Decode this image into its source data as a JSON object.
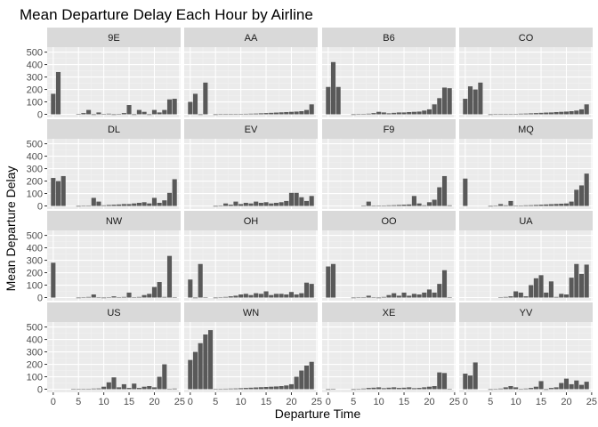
{
  "chart_data": {
    "type": "bar",
    "title": "Mean Departure Delay Each Hour by Airline",
    "xlabel": "Departure Time",
    "ylabel": "Mean Departure Delay",
    "xlim": [
      -1.2,
      25.2
    ],
    "ylim": [
      -25,
      540
    ],
    "x_ticks": [
      0,
      5,
      10,
      15,
      20,
      25
    ],
    "y_ticks": [
      0,
      100,
      200,
      300,
      400,
      500
    ],
    "grid": true,
    "colors": {
      "bar": "#595959",
      "panel": "#ebebeb",
      "grid_major": "#ffffff",
      "grid_minor": "#f2f2f2",
      "strip": "#d9d9d9",
      "tick": "#333333"
    },
    "panels": [
      {
        "name": "9E",
        "x": [
          0,
          1,
          5,
          6,
          7,
          8,
          9,
          10,
          11,
          12,
          13,
          14,
          15,
          16,
          17,
          18,
          19,
          20,
          21,
          22,
          23,
          24
        ],
        "values": [
          165,
          340,
          2,
          10,
          35,
          -5,
          15,
          -3,
          5,
          -5,
          -3,
          10,
          75,
          -5,
          35,
          20,
          -5,
          35,
          15,
          35,
          120,
          125
        ]
      },
      {
        "name": "AA",
        "x": [
          0,
          1,
          2,
          3,
          5,
          6,
          7,
          8,
          9,
          10,
          11,
          12,
          13,
          14,
          15,
          16,
          17,
          18,
          19,
          20,
          21,
          22,
          23,
          24
        ],
        "values": [
          100,
          165,
          -5,
          255,
          -5,
          -3,
          -2,
          0,
          2,
          3,
          4,
          5,
          6,
          8,
          10,
          12,
          14,
          16,
          18,
          20,
          22,
          25,
          35,
          80
        ]
      },
      {
        "name": "B6",
        "x": [
          0,
          1,
          2,
          5,
          6,
          7,
          8,
          9,
          10,
          11,
          12,
          13,
          14,
          15,
          16,
          17,
          18,
          19,
          20,
          21,
          22,
          23,
          24
        ],
        "values": [
          220,
          420,
          220,
          -5,
          -3,
          2,
          5,
          10,
          20,
          15,
          8,
          12,
          15,
          15,
          18,
          20,
          22,
          30,
          40,
          80,
          130,
          215,
          210
        ]
      },
      {
        "name": "CO",
        "x": [
          0,
          1,
          2,
          3,
          5,
          6,
          7,
          8,
          9,
          10,
          11,
          12,
          13,
          14,
          15,
          16,
          17,
          18,
          19,
          20,
          21,
          22,
          23,
          24
        ],
        "values": [
          125,
          225,
          200,
          255,
          -5,
          -3,
          -2,
          0,
          2,
          3,
          5,
          6,
          8,
          10,
          12,
          14,
          15,
          18,
          20,
          22,
          25,
          30,
          40,
          80
        ]
      },
      {
        "name": "DL",
        "x": [
          0,
          1,
          2,
          5,
          6,
          7,
          8,
          9,
          10,
          11,
          12,
          13,
          14,
          15,
          16,
          17,
          18,
          19,
          20,
          21,
          22,
          23,
          24
        ],
        "values": [
          225,
          200,
          240,
          -5,
          -3,
          2,
          65,
          35,
          5,
          8,
          10,
          12,
          15,
          15,
          20,
          25,
          30,
          20,
          65,
          25,
          45,
          105,
          215
        ]
      },
      {
        "name": "EV",
        "x": [
          5,
          6,
          7,
          8,
          9,
          10,
          11,
          12,
          13,
          14,
          15,
          16,
          17,
          18,
          19,
          20,
          21,
          22,
          23,
          24
        ],
        "values": [
          -5,
          3,
          20,
          10,
          35,
          15,
          25,
          20,
          35,
          25,
          30,
          20,
          25,
          30,
          40,
          105,
          105,
          70,
          40,
          80
        ]
      },
      {
        "name": "F9",
        "x": [
          7,
          8,
          9,
          10,
          11,
          12,
          13,
          14,
          15,
          16,
          17,
          18,
          19,
          20,
          21,
          22,
          23,
          24
        ],
        "values": [
          3,
          35,
          -3,
          2,
          3,
          5,
          6,
          8,
          10,
          12,
          80,
          20,
          5,
          30,
          50,
          150,
          240,
          5
        ]
      },
      {
        "name": "MQ",
        "x": [
          0,
          5,
          6,
          7,
          8,
          9,
          10,
          11,
          12,
          13,
          14,
          15,
          16,
          17,
          18,
          19,
          20,
          21,
          22,
          23,
          24
        ],
        "values": [
          220,
          -5,
          2,
          15,
          5,
          40,
          2,
          3,
          5,
          6,
          8,
          10,
          12,
          14,
          16,
          18,
          20,
          35,
          130,
          165,
          260
        ]
      },
      {
        "name": "NW",
        "x": [
          0,
          5,
          6,
          7,
          8,
          9,
          10,
          11,
          12,
          13,
          14,
          15,
          16,
          17,
          18,
          19,
          20,
          21,
          22,
          23,
          24
        ],
        "values": [
          280,
          -5,
          -3,
          5,
          25,
          -3,
          -5,
          2,
          10,
          -3,
          5,
          40,
          3,
          5,
          20,
          30,
          85,
          125,
          5,
          335,
          3
        ]
      },
      {
        "name": "OH",
        "x": [
          0,
          1,
          2,
          3,
          5,
          6,
          7,
          8,
          9,
          10,
          11,
          12,
          13,
          14,
          15,
          16,
          17,
          18,
          19,
          20,
          21,
          22,
          23,
          24
        ],
        "values": [
          145,
          -5,
          270,
          3,
          -5,
          -3,
          5,
          10,
          15,
          25,
          30,
          20,
          35,
          30,
          50,
          20,
          30,
          30,
          25,
          45,
          25,
          35,
          120,
          110
        ]
      },
      {
        "name": "OO",
        "x": [
          0,
          1,
          5,
          6,
          7,
          8,
          9,
          10,
          11,
          12,
          13,
          14,
          15,
          16,
          17,
          18,
          19,
          20,
          21,
          22,
          23,
          24
        ],
        "values": [
          250,
          270,
          -5,
          2,
          -3,
          15,
          -2,
          -5,
          5,
          20,
          35,
          15,
          40,
          15,
          30,
          25,
          40,
          65,
          40,
          110,
          220,
          3
        ]
      },
      {
        "name": "UA",
        "x": [
          7,
          8,
          9,
          10,
          11,
          12,
          13,
          14,
          15,
          16,
          17,
          18,
          19,
          20,
          21,
          22,
          23,
          24
        ],
        "values": [
          3,
          5,
          10,
          50,
          40,
          10,
          100,
          155,
          180,
          40,
          130,
          5,
          30,
          25,
          160,
          270,
          190,
          265
        ]
      },
      {
        "name": "US",
        "x": [
          4,
          5,
          6,
          7,
          8,
          9,
          10,
          11,
          12,
          13,
          14,
          15,
          16,
          17,
          18,
          19,
          20,
          21,
          22,
          23,
          24
        ],
        "values": [
          3,
          -3,
          2,
          3,
          5,
          6,
          20,
          55,
          95,
          15,
          40,
          10,
          45,
          10,
          20,
          25,
          15,
          100,
          200,
          3,
          5
        ]
      },
      {
        "name": "WN",
        "x": [
          0,
          1,
          2,
          3,
          4,
          5,
          6,
          7,
          8,
          9,
          10,
          11,
          12,
          13,
          14,
          15,
          16,
          17,
          18,
          19,
          20,
          21,
          22,
          23,
          24
        ],
        "values": [
          235,
          300,
          370,
          440,
          475,
          3,
          3,
          4,
          5,
          6,
          8,
          10,
          12,
          14,
          16,
          18,
          20,
          22,
          25,
          30,
          40,
          100,
          150,
          190,
          220
        ]
      },
      {
        "name": "XE",
        "x": [
          0,
          1,
          5,
          6,
          7,
          8,
          9,
          10,
          11,
          12,
          13,
          14,
          15,
          16,
          17,
          18,
          19,
          20,
          21,
          22,
          23,
          24
        ],
        "values": [
          -5,
          -3,
          -5,
          -3,
          5,
          10,
          12,
          15,
          8,
          12,
          15,
          10,
          12,
          15,
          8,
          10,
          15,
          20,
          25,
          135,
          130,
          3
        ]
      },
      {
        "name": "YV",
        "x": [
          0,
          1,
          2,
          5,
          6,
          7,
          8,
          9,
          10,
          11,
          12,
          13,
          14,
          15,
          16,
          17,
          18,
          19,
          20,
          21,
          22,
          23,
          24
        ],
        "values": [
          125,
          110,
          215,
          -5,
          3,
          5,
          15,
          25,
          15,
          -3,
          5,
          10,
          20,
          65,
          -5,
          10,
          15,
          50,
          85,
          40,
          70,
          35,
          60
        ]
      }
    ]
  }
}
